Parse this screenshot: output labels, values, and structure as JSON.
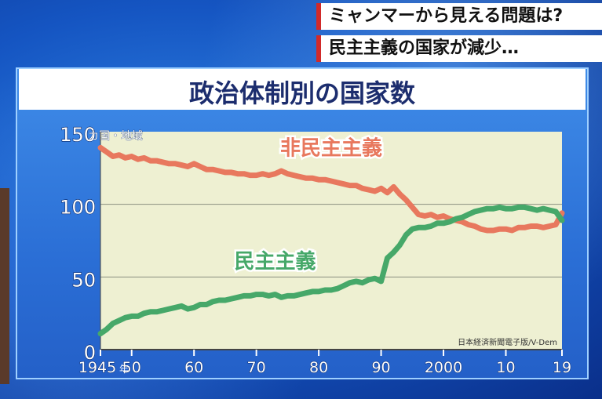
{
  "captions": [
    "ミャンマーから見える問題は?",
    "民主主義の国家が減少…"
  ],
  "chart_data": {
    "type": "line",
    "title": "政治体制別の国家数",
    "ylabel_unit": "カ国・地域",
    "xlabel_unit": "年",
    "xlim": [
      1945,
      2019
    ],
    "ylim": [
      0,
      150
    ],
    "x_ticks": [
      "1945",
      "50",
      "60",
      "70",
      "80",
      "90",
      "2000",
      "10",
      "19"
    ],
    "x_tick_values": [
      1945,
      1950,
      1960,
      1970,
      1980,
      1990,
      2000,
      2010,
      2019
    ],
    "y_ticks": [
      "0",
      "50",
      "100",
      "150"
    ],
    "y_tick_values": [
      0,
      50,
      100,
      150
    ],
    "grid": true,
    "source": "日本経済新聞電子版/V-Dem",
    "colors": {
      "non_democracy": "#e8785e",
      "democracy": "#46a869",
      "plot_bg": "#eef0d2"
    },
    "x": [
      1945,
      1946,
      1947,
      1948,
      1949,
      1950,
      1951,
      1952,
      1953,
      1954,
      1955,
      1956,
      1957,
      1958,
      1959,
      1960,
      1961,
      1962,
      1963,
      1964,
      1965,
      1966,
      1967,
      1968,
      1969,
      1970,
      1971,
      1972,
      1973,
      1974,
      1975,
      1976,
      1977,
      1978,
      1979,
      1980,
      1981,
      1982,
      1983,
      1984,
      1985,
      1986,
      1987,
      1988,
      1989,
      1990,
      1991,
      1992,
      1993,
      1994,
      1995,
      1996,
      1997,
      1998,
      1999,
      2000,
      2001,
      2002,
      2003,
      2004,
      2005,
      2006,
      2007,
      2008,
      2009,
      2010,
      2011,
      2012,
      2013,
      2014,
      2015,
      2016,
      2017,
      2018,
      2019
    ],
    "series": [
      {
        "name": "非民主主義",
        "values": [
          139,
          136,
          133,
          134,
          132,
          133,
          131,
          132,
          130,
          130,
          129,
          128,
          128,
          127,
          126,
          128,
          126,
          124,
          124,
          123,
          122,
          122,
          121,
          121,
          120,
          120,
          121,
          120,
          121,
          123,
          121,
          120,
          119,
          118,
          118,
          117,
          117,
          116,
          115,
          114,
          113,
          113,
          111,
          110,
          109,
          111,
          108,
          112,
          107,
          103,
          98,
          93,
          92,
          93,
          91,
          92,
          90,
          89,
          88,
          86,
          85,
          83,
          82,
          82,
          83,
          83,
          82,
          84,
          84,
          85,
          85,
          84,
          85,
          86,
          94
        ]
      },
      {
        "name": "民主主義",
        "values": [
          11,
          14,
          18,
          20,
          22,
          23,
          23,
          25,
          26,
          26,
          27,
          28,
          29,
          30,
          28,
          29,
          31,
          31,
          33,
          34,
          34,
          35,
          36,
          37,
          37,
          38,
          38,
          37,
          38,
          36,
          37,
          37,
          38,
          39,
          40,
          40,
          41,
          41,
          42,
          44,
          46,
          47,
          46,
          48,
          49,
          47,
          63,
          67,
          72,
          79,
          83,
          84,
          84,
          85,
          87,
          87,
          88,
          90,
          91,
          93,
          95,
          96,
          97,
          97,
          98,
          97,
          97,
          98,
          98,
          97,
          96,
          97,
          96,
          95,
          89
        ]
      }
    ]
  }
}
